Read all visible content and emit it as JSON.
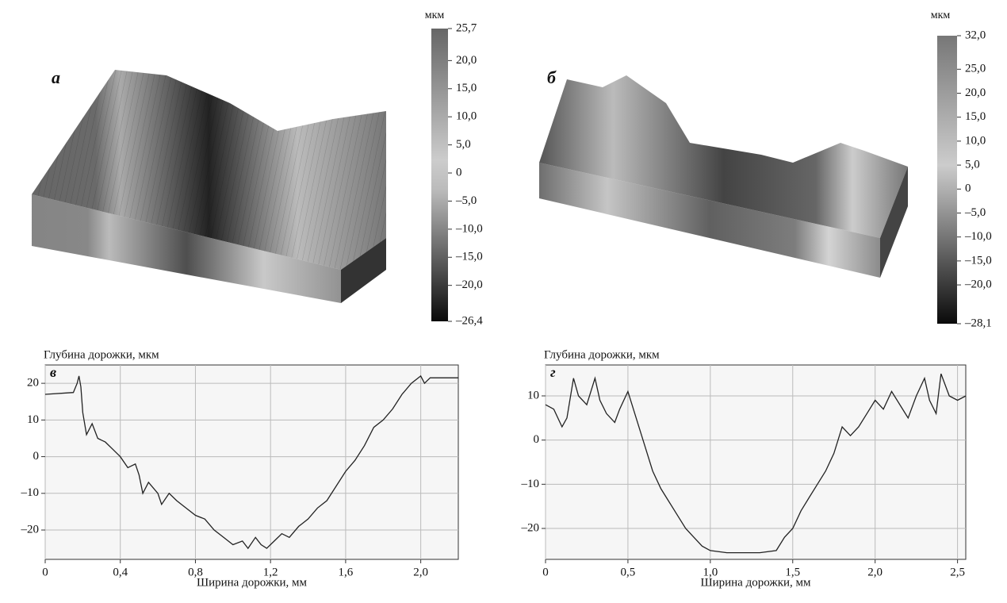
{
  "chart_data": [
    {
      "type": "surface",
      "panel": "а",
      "unit": "мкм",
      "clim": [
        -26.4,
        25.7
      ],
      "cticks": [
        {
          "value": 25.7,
          "label": "25,7"
        },
        {
          "value": 20,
          "label": "20,0"
        },
        {
          "value": 15,
          "label": "15,0"
        },
        {
          "value": 10,
          "label": "10,0"
        },
        {
          "value": 5,
          "label": "5,0"
        },
        0,
        {
          "value": -5,
          "label": "–5,0"
        },
        {
          "value": -10,
          "label": "–10,0"
        },
        {
          "value": -15,
          "label": "–15,0"
        },
        {
          "value": -20,
          "label": "–20,0"
        },
        {
          "value": -26.4,
          "label": "–26,4"
        }
      ]
    },
    {
      "type": "surface",
      "panel": "б",
      "unit": "мкм",
      "clim": [
        -28.1,
        32.0
      ],
      "cticks": [
        {
          "value": 32,
          "label": "32,0"
        },
        {
          "value": 25,
          "label": "25,0"
        },
        {
          "value": 20,
          "label": "20,0"
        },
        {
          "value": 15,
          "label": "15,0"
        },
        {
          "value": 10,
          "label": "10,0"
        },
        {
          "value": 5,
          "label": "5,0"
        },
        0,
        {
          "value": -5,
          "label": "–5,0"
        },
        {
          "value": -10,
          "label": "–10,0"
        },
        {
          "value": -15,
          "label": "–15,0"
        },
        {
          "value": -20,
          "label": "–20,0"
        },
        {
          "value": -28.1,
          "label": "–28,1"
        }
      ]
    },
    {
      "type": "line",
      "panel": "в",
      "ylabel": "Глубина дорожки, мкм",
      "xlabel": "Ширина дорожки, мм",
      "color": "#222",
      "grid": true,
      "xlim": [
        0,
        2.2
      ],
      "ylim": [
        -28,
        25
      ],
      "xticks": [
        0,
        {
          "value": 0.4,
          "label": "0,4"
        },
        {
          "value": 0.8,
          "label": "0,8"
        },
        {
          "value": 1.2,
          "label": "1,2"
        },
        {
          "value": 1.6,
          "label": "1,6"
        },
        {
          "value": 2.0,
          "label": "2,0"
        }
      ],
      "yticks": [
        {
          "value": -20,
          "label": "–20"
        },
        {
          "value": -10,
          "label": "–10"
        },
        0,
        10,
        20
      ],
      "x": [
        0,
        0.15,
        0.17,
        0.18,
        0.19,
        0.2,
        0.22,
        0.25,
        0.28,
        0.32,
        0.36,
        0.4,
        0.44,
        0.48,
        0.5,
        0.52,
        0.55,
        0.6,
        0.62,
        0.66,
        0.7,
        0.75,
        0.8,
        0.85,
        0.9,
        0.95,
        1.0,
        1.05,
        1.08,
        1.12,
        1.15,
        1.18,
        1.22,
        1.26,
        1.3,
        1.35,
        1.4,
        1.45,
        1.5,
        1.55,
        1.6,
        1.65,
        1.7,
        1.75,
        1.8,
        1.85,
        1.9,
        1.95,
        2.0,
        2.02,
        2.05,
        2.2
      ],
      "values": [
        17,
        17.5,
        20,
        22,
        19,
        12,
        6,
        9,
        5,
        4,
        2,
        0,
        -3,
        -2,
        -5,
        -10,
        -7,
        -10,
        -13,
        -10,
        -12,
        -14,
        -16,
        -17,
        -20,
        -22,
        -24,
        -23,
        -25,
        -22,
        -24,
        -25,
        -23,
        -21,
        -22,
        -19,
        -17,
        -14,
        -12,
        -8,
        -4,
        -1,
        3,
        8,
        10,
        13,
        17,
        20,
        22,
        20,
        21.5,
        21.5
      ]
    },
    {
      "type": "line",
      "panel": "г",
      "ylabel": "Глубина дорожки, мкм",
      "xlabel": "Ширина дорожки, мм",
      "color": "#222",
      "grid": true,
      "xlim": [
        0,
        2.55
      ],
      "ylim": [
        -27,
        17
      ],
      "xticks": [
        0,
        {
          "value": 0.5,
          "label": "0,5"
        },
        {
          "value": 1.0,
          "label": "1,0"
        },
        {
          "value": 1.5,
          "label": "1,5"
        },
        {
          "value": 2.0,
          "label": "2,0"
        },
        {
          "value": 2.5,
          "label": "2,5"
        }
      ],
      "yticks": [
        {
          "value": -20,
          "label": "–20"
        },
        {
          "value": -10,
          "label": "–10"
        },
        0,
        10
      ],
      "x": [
        0,
        0.05,
        0.1,
        0.13,
        0.17,
        0.2,
        0.25,
        0.3,
        0.33,
        0.37,
        0.42,
        0.45,
        0.5,
        0.55,
        0.6,
        0.65,
        0.7,
        0.75,
        0.8,
        0.85,
        0.9,
        0.95,
        1.0,
        1.1,
        1.2,
        1.3,
        1.4,
        1.45,
        1.5,
        1.55,
        1.6,
        1.65,
        1.7,
        1.75,
        1.8,
        1.85,
        1.9,
        1.95,
        2.0,
        2.05,
        2.1,
        2.15,
        2.2,
        2.25,
        2.3,
        2.33,
        2.37,
        2.4,
        2.45,
        2.5,
        2.55
      ],
      "values": [
        8,
        7,
        3,
        5,
        14,
        10,
        8,
        14,
        9,
        6,
        4,
        7,
        11,
        5,
        -1,
        -7,
        -11,
        -14,
        -17,
        -20,
        -22,
        -24,
        -25,
        -25.5,
        -25.5,
        -25.5,
        -25,
        -22,
        -20,
        -16,
        -13,
        -10,
        -7,
        -3,
        3,
        1,
        3,
        6,
        9,
        7,
        11,
        8,
        5,
        10,
        14,
        9,
        6,
        15,
        10,
        9,
        10
      ]
    }
  ]
}
